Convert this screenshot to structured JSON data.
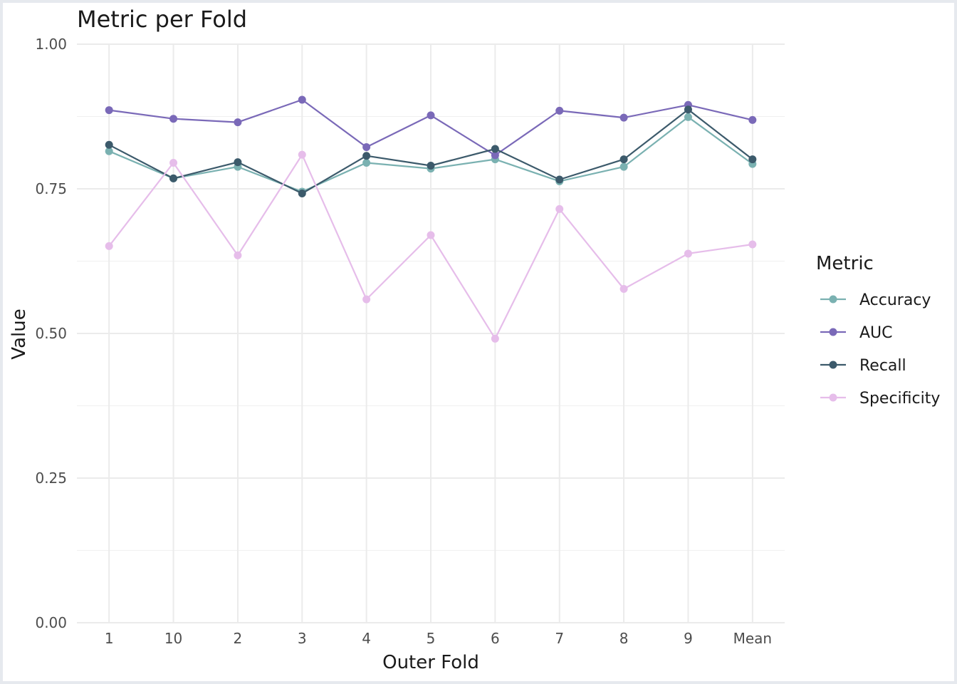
{
  "chart_data": {
    "type": "line",
    "title": "Metric per Fold",
    "xlabel": "Outer Fold",
    "ylabel": "Value",
    "ylim": [
      0,
      1
    ],
    "yticks": [
      "0.00",
      "0.25",
      "0.50",
      "0.75",
      "1.00"
    ],
    "grid": true,
    "legend_position": "right",
    "legend_title": "Metric",
    "categories": [
      "1",
      "10",
      "2",
      "3",
      "4",
      "5",
      "6",
      "7",
      "8",
      "9",
      "Mean"
    ],
    "series": [
      {
        "name": "Accuracy",
        "color": "#7ab1b1",
        "values": [
          0.815,
          0.768,
          0.788,
          0.745,
          0.795,
          0.785,
          0.801,
          0.763,
          0.788,
          0.874,
          0.793
        ]
      },
      {
        "name": "AUC",
        "color": "#7a69b8",
        "values": [
          0.886,
          0.871,
          0.865,
          0.904,
          0.822,
          0.877,
          0.808,
          0.885,
          0.873,
          0.895,
          0.869
        ]
      },
      {
        "name": "Recall",
        "color": "#3c5a6b",
        "values": [
          0.826,
          0.768,
          0.796,
          0.742,
          0.807,
          0.79,
          0.819,
          0.766,
          0.801,
          0.887,
          0.801
        ]
      },
      {
        "name": "Specificity",
        "color": "#e6bdea",
        "values": [
          0.651,
          0.795,
          0.635,
          0.809,
          0.559,
          0.67,
          0.491,
          0.715,
          0.577,
          0.638,
          0.654
        ]
      }
    ]
  }
}
